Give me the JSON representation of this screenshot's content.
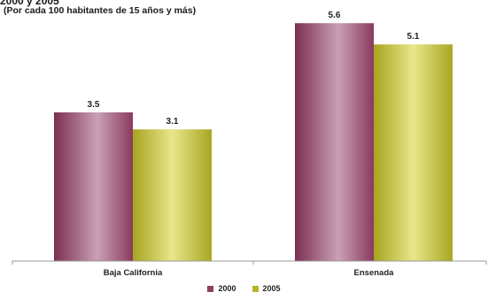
{
  "title_partial": "2000 y 2005",
  "subtitle": "(Por cada 100 habitantes de 15 años y más)",
  "colors": {
    "s2000": "#8f3f62",
    "s2000_light": "#c9a0b5",
    "s2005": "#b7b529",
    "s2005_light": "#e8e68a",
    "axis": "#9a9a9a"
  },
  "chart_data": {
    "type": "bar",
    "categories": [
      "Baja California",
      "Ensenada"
    ],
    "series": [
      {
        "name": "2000",
        "values": [
          3.5,
          5.6
        ]
      },
      {
        "name": "2005",
        "values": [
          3.1,
          5.1
        ]
      }
    ],
    "data_labels": [
      [
        "3.5",
        "3.1"
      ],
      [
        "5.6",
        "5.1"
      ]
    ],
    "ylim": [
      0,
      6
    ],
    "grid": false,
    "legend": "bottom"
  }
}
